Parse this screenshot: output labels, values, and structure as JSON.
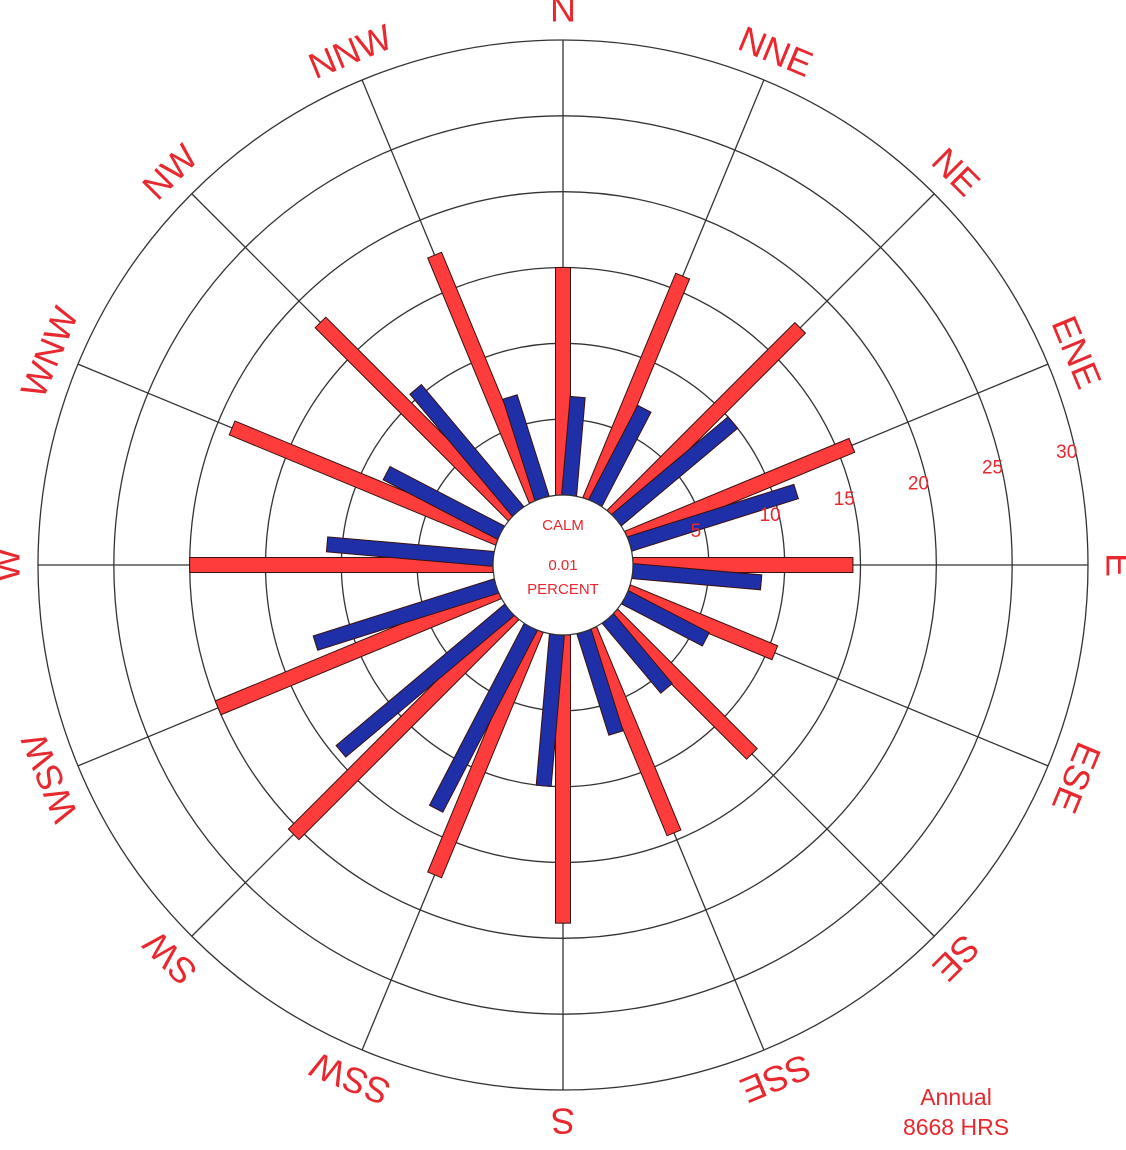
{
  "chart_data": {
    "type": "wind-rose",
    "title": "",
    "directions": [
      "N",
      "NNE",
      "NE",
      "ENE",
      "E",
      "ESE",
      "SE",
      "SSE",
      "S",
      "SSW",
      "SW",
      "WSW",
      "W",
      "WNW",
      "NW",
      "NNW"
    ],
    "series": [
      {
        "color": "#ff3c3c",
        "values": [
          15,
          16,
          17.5,
          16,
          14.5,
          10.5,
          13,
          14.5,
          19,
          17.5,
          20.5,
          20,
          20,
          19,
          18,
          17.5
        ]
      },
      {
        "color": "#1f2fa8",
        "values": [
          6.5,
          7,
          10,
          11.5,
          8.5,
          6,
          6,
          7,
          10,
          13.5,
          14.5,
          12.5,
          11,
          8.5,
          10.5,
          7
        ]
      }
    ],
    "rings": [
      5,
      10,
      15,
      20,
      25,
      30
    ],
    "ring_labels": [
      "5",
      "10",
      "15",
      "20",
      "25",
      "30"
    ],
    "calm": {
      "label": "CALM",
      "value": "0.01",
      "unit": "PERCENT"
    },
    "footnote": {
      "line1": "Annual",
      "line2": "8668 HRS"
    },
    "grid_color": "#333333",
    "label_color": "#e8282e"
  }
}
